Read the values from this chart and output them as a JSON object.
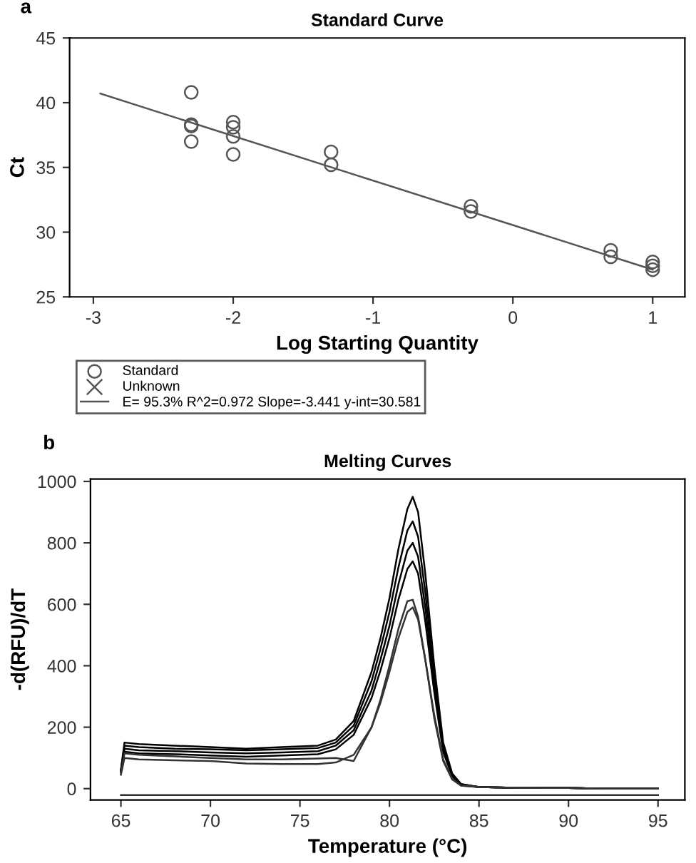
{
  "chart_data": [
    {
      "type": "scatter",
      "title": "Standard Curve",
      "xlabel": "Log Starting Quantity",
      "ylabel": "Ct",
      "xlim": [
        -3.17,
        1.23
      ],
      "ylim": [
        25,
        45
      ],
      "xticks": [
        -3,
        -2,
        -1,
        0,
        1
      ],
      "yticks": [
        25,
        30,
        35,
        40,
        45
      ],
      "legend": "bottom",
      "annotations": [
        "a"
      ],
      "series": [
        {
          "name": "Standard",
          "type": "scatter",
          "marker": "circle",
          "color": "#555555",
          "x": [
            -2.3,
            -2.3,
            -2.3,
            -2.3,
            -2,
            -2,
            -2,
            -2,
            -1.3,
            -1.3,
            -0.3,
            -0.3,
            0.7,
            0.7,
            1,
            1,
            1
          ],
          "values": [
            40.8,
            38.3,
            38.2,
            37.0,
            38.5,
            38.1,
            37.4,
            36.0,
            36.2,
            35.2,
            32.0,
            31.6,
            28.6,
            28.1,
            27.7,
            27.4,
            27.1
          ]
        },
        {
          "name": "Unknown",
          "type": "scatter",
          "marker": "cross",
          "color": "#555555"
        },
        {
          "name": "E= 95.3% R^2=0.972 Slope=-3.441 y-int=30.581",
          "type": "line",
          "marker": "none",
          "color": "#555555",
          "x": [
            -2.95,
            1.0
          ],
          "values": [
            40.7,
            27.1
          ]
        }
      ]
    },
    {
      "type": "line",
      "title": "Melting Curves",
      "xlabel": "Temperature (°C)",
      "ylabel": "-d(RFU)/dT",
      "xlim": [
        63.3,
        96.5
      ],
      "ylim": [
        -37,
        1008
      ],
      "xticks": [
        65,
        70,
        75,
        80,
        85,
        90,
        95
      ],
      "yticks": [
        0,
        200,
        400,
        600,
        800,
        1000
      ],
      "annotations": [
        "b"
      ],
      "x": [
        65,
        65.2,
        66,
        68,
        70,
        72,
        74,
        76,
        77,
        78,
        79,
        79.5,
        80,
        80.5,
        81,
        81.3,
        81.6,
        82,
        82.5,
        83,
        83.5,
        84,
        85,
        87,
        90,
        92,
        95
      ],
      "series": [
        {
          "color": "#000000",
          "values": [
            60,
            150,
            145,
            140,
            135,
            130,
            135,
            140,
            160,
            220,
            380,
            490,
            620,
            780,
            910,
            950,
            900,
            700,
            400,
            150,
            50,
            15,
            5,
            3,
            2,
            0,
            0
          ]
        },
        {
          "color": "#000000",
          "values": [
            60,
            140,
            135,
            130,
            128,
            125,
            128,
            132,
            150,
            205,
            350,
            455,
            575,
            720,
            840,
            870,
            820,
            640,
            370,
            140,
            45,
            14,
            5,
            3,
            2,
            0,
            0
          ]
        },
        {
          "color": "#000000",
          "values": [
            55,
            130,
            125,
            122,
            118,
            115,
            118,
            122,
            140,
            190,
            320,
            420,
            530,
            665,
            775,
            800,
            755,
            590,
            340,
            130,
            42,
            13,
            5,
            3,
            2,
            0,
            0
          ]
        },
        {
          "color": "#000000",
          "values": [
            55,
            120,
            115,
            112,
            108,
            104,
            108,
            112,
            128,
            175,
            295,
            385,
            490,
            615,
            715,
            740,
            700,
            545,
            315,
            120,
            40,
            12,
            5,
            3,
            2,
            0,
            0
          ]
        },
        {
          "color": "#333333",
          "values": [
            50,
            115,
            110,
            105,
            100,
            95,
            95,
            98,
            100,
            90,
            200,
            290,
            400,
            520,
            610,
            615,
            560,
            420,
            230,
            90,
            30,
            10,
            5,
            3,
            2,
            0,
            0
          ]
        },
        {
          "color": "#333333",
          "values": [
            45,
            100,
            95,
            92,
            90,
            82,
            80,
            80,
            85,
            110,
            200,
            280,
            380,
            490,
            575,
            590,
            550,
            420,
            240,
            95,
            32,
            10,
            5,
            3,
            2,
            0,
            0
          ]
        },
        {
          "color": "#333333",
          "values": [
            -21,
            -21,
            -21,
            -21,
            -21,
            -21,
            -21,
            -21,
            -21,
            -21,
            -21,
            -21,
            -21,
            -21,
            -21,
            -21,
            -21,
            -21,
            -21,
            -21,
            -21,
            -21,
            -21,
            -21,
            -21,
            -21,
            -21
          ]
        }
      ]
    }
  ]
}
